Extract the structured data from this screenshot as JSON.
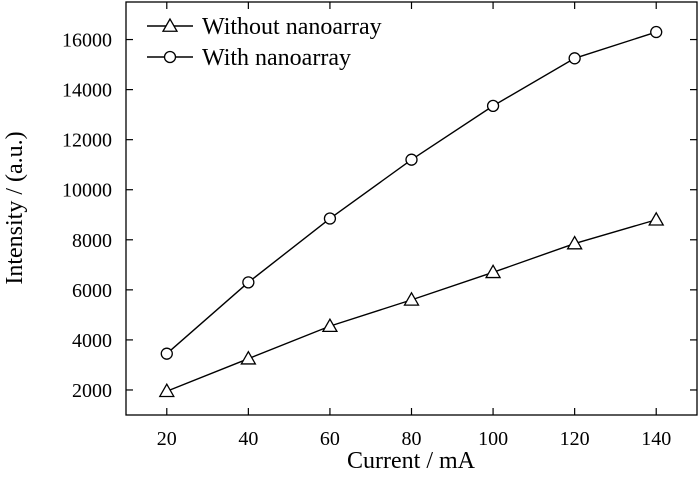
{
  "chart_data": {
    "type": "line",
    "x": [
      20,
      40,
      60,
      80,
      100,
      120,
      140
    ],
    "series": [
      {
        "name": "Without nanoarray",
        "marker": "triangle",
        "values": [
          1950,
          3250,
          4550,
          5600,
          6700,
          7850,
          8800
        ]
      },
      {
        "name": "With nanoarray",
        "marker": "circle",
        "values": [
          3450,
          6300,
          8850,
          11200,
          13350,
          15250,
          16300
        ]
      }
    ],
    "xlabel": "Current / mA",
    "ylabel": "Intensity / (a.u.)",
    "xlim": [
      10,
      150
    ],
    "ylim": [
      1000,
      17500
    ],
    "xticks": [
      20,
      40,
      60,
      80,
      100,
      120,
      140
    ],
    "yticks": [
      2000,
      4000,
      6000,
      8000,
      10000,
      12000,
      14000,
      16000
    ],
    "grid": false,
    "legend_position": "top-left"
  }
}
